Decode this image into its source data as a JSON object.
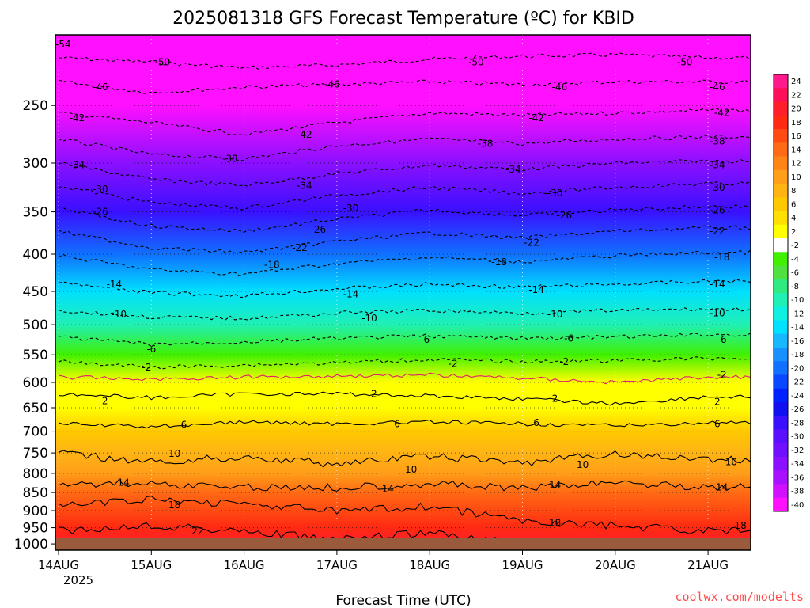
{
  "title": "2025081318 GFS Forecast Temperature (ºC) for KBID",
  "credit": "coolwx.com/modelts",
  "credit_color": "#ff4c4c",
  "chart_data": {
    "type": "heatmap",
    "title": "2025081318 GFS Forecast Temperature (ºC) for KBID",
    "xlabel": "Forecast Time (UTC)",
    "ylabel": "",
    "x_ticks": [
      "14AUG",
      "15AUG",
      "16AUG",
      "17AUG",
      "18AUG",
      "19AUG",
      "20AUG",
      "21AUG"
    ],
    "x_year_label": "2025",
    "x_range_days": [
      0,
      7.5
    ],
    "y_ticks": [
      250,
      300,
      350,
      400,
      450,
      500,
      550,
      600,
      650,
      700,
      750,
      800,
      850,
      900,
      950,
      1000
    ],
    "ylim_hpa": [
      1020,
      200
    ],
    "y_scale": "log-pressure",
    "surface_color": "#9a5a3c",
    "freezing_line_color": "#e0206e",
    "colorbar": {
      "labels": [
        "24",
        "22",
        "20",
        "18",
        "16",
        "14",
        "12",
        "10",
        "8",
        "6",
        "4",
        "2",
        "-2",
        "-4",
        "-6",
        "-8",
        "-10",
        "-12",
        "-14",
        "-16",
        "-18",
        "-20",
        "-22",
        "-24",
        "-26",
        "-28",
        "-30",
        "-32",
        "-34",
        "-36",
        "-38",
        "-40"
      ],
      "colors": [
        "#ff1a8c",
        "#ff0f5a",
        "#ff1f2b",
        "#ff2a12",
        "#ff4a12",
        "#ff6a14",
        "#ff8418",
        "#ff9e18",
        "#ffb414",
        "#ffc800",
        "#ffe000",
        "#ffff00",
        "#ffffff",
        "#40f000",
        "#50e040",
        "#30ea80",
        "#20f0b4",
        "#10f0e0",
        "#00e0ff",
        "#18b8ff",
        "#1890ff",
        "#1070ff",
        "#0a48ff",
        "#0020ff",
        "#1010f0",
        "#3a10ff",
        "#5a10ff",
        "#7010ff",
        "#8a10ff",
        "#a810ff",
        "#d010ff",
        "#ff10ff"
      ]
    },
    "temperature_profile": [
      {
        "pressure_hpa": 1000,
        "temp_c": 21
      },
      {
        "pressure_hpa": 950,
        "temp_c": 19
      },
      {
        "pressure_hpa": 900,
        "temp_c": 17
      },
      {
        "pressure_hpa": 850,
        "temp_c": 15
      },
      {
        "pressure_hpa": 800,
        "temp_c": 11
      },
      {
        "pressure_hpa": 750,
        "temp_c": 9
      },
      {
        "pressure_hpa": 700,
        "temp_c": 6
      },
      {
        "pressure_hpa": 650,
        "temp_c": 3
      },
      {
        "pressure_hpa": 600,
        "temp_c": 0
      },
      {
        "pressure_hpa": 550,
        "temp_c": -4
      },
      {
        "pressure_hpa": 500,
        "temp_c": -9
      },
      {
        "pressure_hpa": 450,
        "temp_c": -14
      },
      {
        "pressure_hpa": 400,
        "temp_c": -20
      },
      {
        "pressure_hpa": 350,
        "temp_c": -27
      },
      {
        "pressure_hpa": 300,
        "temp_c": -34
      },
      {
        "pressure_hpa": 250,
        "temp_c": -43
      },
      {
        "pressure_hpa": 200,
        "temp_c": -54
      }
    ],
    "contours": [
      {
        "temp_c": -50,
        "dashed": true,
        "pressure_by_day": [
          215,
          218,
          222,
          220,
          216,
          214,
          213,
          215
        ]
      },
      {
        "temp_c": -46,
        "dashed": true,
        "pressure_by_day": [
          232,
          240,
          236,
          234,
          232,
          234,
          232,
          232
        ]
      },
      {
        "temp_c": -42,
        "dashed": true,
        "pressure_by_day": [
          256,
          264,
          274,
          264,
          256,
          258,
          256,
          254
        ]
      },
      {
        "temp_c": -38,
        "dashed": true,
        "pressure_by_day": [
          278,
          292,
          296,
          284,
          278,
          282,
          278,
          276
        ]
      },
      {
        "temp_c": -34,
        "dashed": true,
        "pressure_by_day": [
          300,
          316,
          322,
          310,
          302,
          306,
          300,
          298
        ]
      },
      {
        "temp_c": -30,
        "dashed": true,
        "pressure_by_day": [
          322,
          340,
          346,
          332,
          324,
          330,
          324,
          320
        ]
      },
      {
        "temp_c": -26,
        "dashed": true,
        "pressure_by_day": [
          346,
          366,
          372,
          358,
          348,
          354,
          348,
          344
        ]
      },
      {
        "temp_c": -22,
        "dashed": true,
        "pressure_by_day": [
          372,
          392,
          398,
          384,
          374,
          380,
          372,
          368
        ]
      },
      {
        "temp_c": -18,
        "dashed": true,
        "pressure_by_day": [
          402,
          420,
          426,
          412,
          404,
          410,
          402,
          398
        ]
      },
      {
        "temp_c": -14,
        "dashed": true,
        "pressure_by_day": [
          438,
          452,
          456,
          446,
          440,
          444,
          440,
          436
        ]
      },
      {
        "temp_c": -10,
        "dashed": true,
        "pressure_by_day": [
          478,
          488,
          490,
          482,
          478,
          482,
          478,
          476
        ]
      },
      {
        "temp_c": -6,
        "dashed": true,
        "pressure_by_day": [
          520,
          532,
          528,
          522,
          518,
          522,
          520,
          516
        ]
      },
      {
        "temp_c": -2,
        "dashed": true,
        "pressure_by_day": [
          562,
          572,
          568,
          564,
          558,
          562,
          560,
          556
        ]
      },
      {
        "temp_c": 0,
        "dashed": false,
        "pressure_by_day": [
          590,
          594,
          590,
          588,
          586,
          592,
          600,
          590
        ]
      },
      {
        "temp_c": 2,
        "dashed": false,
        "pressure_by_day": [
          622,
          630,
          622,
          622,
          626,
          632,
          642,
          628
        ]
      },
      {
        "temp_c": 6,
        "dashed": false,
        "pressure_by_day": [
          684,
          690,
          680,
          684,
          680,
          684,
          688,
          682
        ]
      },
      {
        "temp_c": 10,
        "dashed": false,
        "pressure_by_day": [
          752,
          772,
          760,
          776,
          758,
          774,
          752,
          766
        ]
      },
      {
        "temp_c": 14,
        "dashed": false,
        "pressure_by_day": [
          826,
          826,
          836,
          836,
          826,
          840,
          822,
          836
        ]
      },
      {
        "temp_c": 18,
        "dashed": false,
        "pressure_by_day": [
          884,
          870,
          880,
          902,
          888,
          930,
          944,
          960
        ]
      },
      {
        "temp_c": 22,
        "dashed": false,
        "pressure_by_day": [
          960,
          942,
          960,
          986,
          966,
          1000,
          1000,
          1000
        ]
      }
    ],
    "contour_labels": [
      {
        "text": "-54",
        "day": 0.05,
        "hpa": 206
      },
      {
        "text": "-50",
        "day": 1.12,
        "hpa": 218
      },
      {
        "text": "-46",
        "day": 0.45,
        "hpa": 236
      },
      {
        "text": "-42",
        "day": 0.2,
        "hpa": 260
      },
      {
        "text": "-34",
        "day": 0.2,
        "hpa": 302
      },
      {
        "text": "-30",
        "day": 0.45,
        "hpa": 326
      },
      {
        "text": "-26",
        "day": 0.45,
        "hpa": 350
      },
      {
        "text": "-14",
        "day": 0.6,
        "hpa": 440
      },
      {
        "text": "-10",
        "day": 0.65,
        "hpa": 484
      },
      {
        "text": "-6",
        "day": 1.0,
        "hpa": 540
      },
      {
        "text": "-2",
        "day": 0.95,
        "hpa": 572
      },
      {
        "text": "2",
        "day": 0.5,
        "hpa": 636
      },
      {
        "text": "6",
        "day": 1.35,
        "hpa": 686
      },
      {
        "text": "10",
        "day": 1.25,
        "hpa": 752
      },
      {
        "text": "14",
        "day": 0.7,
        "hpa": 824
      },
      {
        "text": "18",
        "day": 1.25,
        "hpa": 884
      },
      {
        "text": "22",
        "day": 1.5,
        "hpa": 960
      },
      {
        "text": "-38",
        "day": 1.85,
        "hpa": 296
      },
      {
        "text": "-42",
        "day": 2.65,
        "hpa": 274
      },
      {
        "text": "-46",
        "day": 2.95,
        "hpa": 234
      },
      {
        "text": "-34",
        "day": 2.65,
        "hpa": 322
      },
      {
        "text": "-30",
        "day": 3.15,
        "hpa": 346
      },
      {
        "text": "-26",
        "day": 2.8,
        "hpa": 370
      },
      {
        "text": "-22",
        "day": 2.6,
        "hpa": 392
      },
      {
        "text": "-18",
        "day": 2.3,
        "hpa": 414
      },
      {
        "text": "-14",
        "day": 3.15,
        "hpa": 454
      },
      {
        "text": "-10",
        "day": 3.35,
        "hpa": 490
      },
      {
        "text": "6",
        "day": 3.65,
        "hpa": 684
      },
      {
        "text": "10",
        "day": 3.8,
        "hpa": 790
      },
      {
        "text": "14",
        "day": 3.55,
        "hpa": 840
      },
      {
        "text": "18",
        "day": 3.65,
        "hpa": 992
      },
      {
        "text": "-6",
        "day": 3.95,
        "hpa": 524
      },
      {
        "text": "-2",
        "day": 4.25,
        "hpa": 566
      },
      {
        "text": "2",
        "day": 3.4,
        "hpa": 622
      },
      {
        "text": "-50",
        "day": 4.5,
        "hpa": 218
      },
      {
        "text": "-42",
        "day": 5.15,
        "hpa": 260
      },
      {
        "text": "-46",
        "day": 5.4,
        "hpa": 236
      },
      {
        "text": "-38",
        "day": 4.6,
        "hpa": 282
      },
      {
        "text": "-34",
        "day": 4.9,
        "hpa": 306
      },
      {
        "text": "-30",
        "day": 5.35,
        "hpa": 330
      },
      {
        "text": "-26",
        "day": 5.45,
        "hpa": 354
      },
      {
        "text": "-22",
        "day": 5.1,
        "hpa": 386
      },
      {
        "text": "-18",
        "day": 4.75,
        "hpa": 410
      },
      {
        "text": "-14",
        "day": 5.15,
        "hpa": 448
      },
      {
        "text": "-10",
        "day": 5.35,
        "hpa": 484
      },
      {
        "text": "-6",
        "day": 5.5,
        "hpa": 522
      },
      {
        "text": "-2",
        "day": 5.45,
        "hpa": 562
      },
      {
        "text": "2",
        "day": 5.35,
        "hpa": 632
      },
      {
        "text": "6",
        "day": 5.15,
        "hpa": 682
      },
      {
        "text": "10",
        "day": 5.65,
        "hpa": 778
      },
      {
        "text": "14",
        "day": 5.35,
        "hpa": 830
      },
      {
        "text": "18",
        "day": 5.35,
        "hpa": 936
      },
      {
        "text": "22",
        "day": 4.8,
        "hpa": 1000
      },
      {
        "text": "-50",
        "day": 6.75,
        "hpa": 218
      },
      {
        "text": "-46",
        "day": 7.1,
        "hpa": 236
      },
      {
        "text": "-42",
        "day": 7.15,
        "hpa": 256
      },
      {
        "text": "-38",
        "day": 7.1,
        "hpa": 280
      },
      {
        "text": "-34",
        "day": 7.1,
        "hpa": 302
      },
      {
        "text": "-30",
        "day": 7.1,
        "hpa": 324
      },
      {
        "text": "-26",
        "day": 7.1,
        "hpa": 348
      },
      {
        "text": "-22",
        "day": 7.1,
        "hpa": 372
      },
      {
        "text": "-18",
        "day": 7.15,
        "hpa": 404
      },
      {
        "text": "-14",
        "day": 7.1,
        "hpa": 440
      },
      {
        "text": "-10",
        "day": 7.1,
        "hpa": 482
      },
      {
        "text": "-6",
        "day": 7.15,
        "hpa": 524
      },
      {
        "text": "-2",
        "day": 7.15,
        "hpa": 586
      },
      {
        "text": "2",
        "day": 7.1,
        "hpa": 638
      },
      {
        "text": "6",
        "day": 7.1,
        "hpa": 684
      },
      {
        "text": "10",
        "day": 7.25,
        "hpa": 772
      },
      {
        "text": "14",
        "day": 7.15,
        "hpa": 836
      },
      {
        "text": "18",
        "day": 7.35,
        "hpa": 944
      }
    ]
  }
}
